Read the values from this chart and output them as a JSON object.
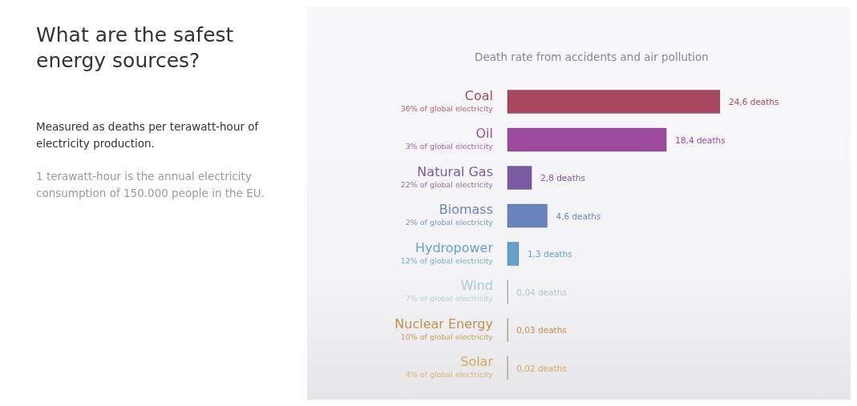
{
  "chart_data": {
    "type": "bar",
    "orientation": "horizontal",
    "title": "What are the safest energy sources?",
    "subtitle": "Death rate from accidents and air pollution",
    "categories": [
      "Coal",
      "Oil",
      "Natural Gas",
      "Biomass",
      "Hydropower",
      "Wind",
      "Nuclear Energy",
      "Solar"
    ],
    "values": [
      24.6,
      18.4,
      2.8,
      4.6,
      1.3,
      0.04,
      0.03,
      0.02
    ],
    "colors": [
      "#a8475f",
      "#9b4a9e",
      "#7a5aa0",
      "#6a84bd",
      "#64a2cc",
      "#a9cbd3",
      "#c09050",
      "#d4a860"
    ],
    "value_labels": [
      "24,6 deaths",
      "18,4 deaths",
      "2,8 deaths",
      "4,6 deaths",
      "1,3 deaths",
      "0,04  deaths",
      "0,03  deaths",
      "0,02  deaths"
    ],
    "tick_labels": "y",
    "annotations": [
      "Measured as deaths per terawatt-hour of electricity production.",
      "1 terawatt-hour is the annual electricity consumption of 150.000 people in the EU.",
      "36% of global electricity",
      "3% of global electricity",
      "22% of global electricity",
      "2% of global electricity",
      "12% of global electricity",
      "7% of global electricity",
      "10% of global electricity",
      "4% of global electricity"
    ]
  }
}
